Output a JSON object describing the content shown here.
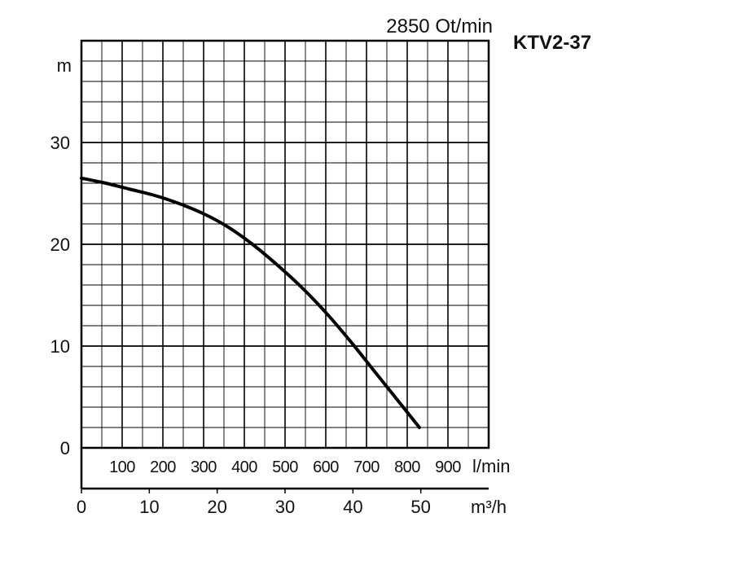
{
  "chart_data": {
    "type": "line",
    "title": "2850 Ot/min",
    "model": "KTV2-37",
    "ylabel": "m",
    "ylim": [
      0,
      40
    ],
    "yticks": [
      0,
      10,
      20,
      30
    ],
    "x_primary": {
      "unit": "l/min",
      "range": [
        0,
        1000
      ],
      "ticks": [
        "100",
        "200",
        "300",
        "400",
        "500",
        "600",
        "700",
        "800",
        "900"
      ]
    },
    "x_secondary": {
      "unit": "m³/h",
      "range": [
        0,
        60
      ],
      "ticks": [
        "0",
        "10",
        "20",
        "30",
        "40",
        "50"
      ]
    },
    "grid": true,
    "series": [
      {
        "x": [
          0,
          60,
          120,
          180,
          240,
          300,
          360,
          420,
          480,
          540,
          600,
          660,
          720,
          780,
          830
        ],
        "y": [
          26.5,
          26.0,
          25.4,
          24.8,
          24.0,
          23.0,
          21.7,
          20.0,
          18.0,
          15.8,
          13.3,
          10.5,
          7.5,
          4.5,
          2.0
        ]
      }
    ]
  }
}
